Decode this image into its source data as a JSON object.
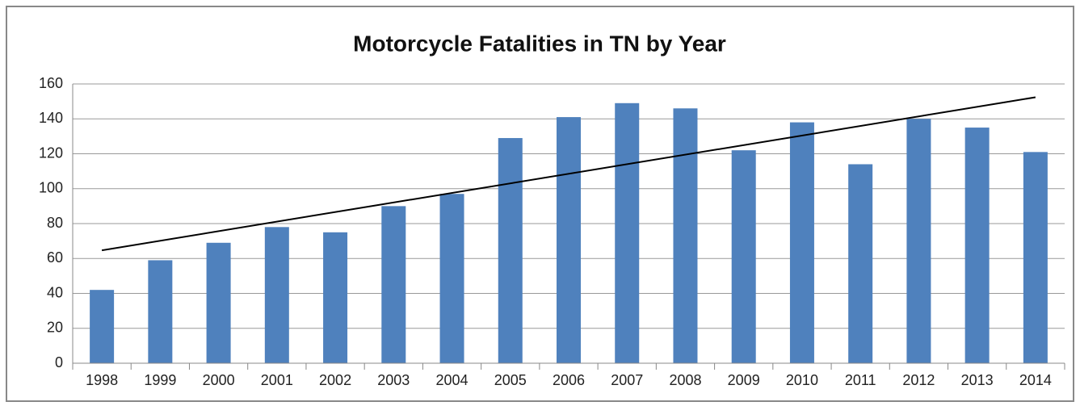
{
  "chart_data": {
    "type": "bar",
    "title": "Motorcycle Fatalities in TN by Year",
    "categories": [
      "1998",
      "1999",
      "2000",
      "2001",
      "2002",
      "2003",
      "2004",
      "2005",
      "2006",
      "2007",
      "2008",
      "2009",
      "2010",
      "2011",
      "2012",
      "2013",
      "2014"
    ],
    "values": [
      42,
      59,
      69,
      78,
      75,
      90,
      97,
      129,
      141,
      149,
      146,
      122,
      138,
      114,
      140,
      135,
      121
    ],
    "color": "#4f81bd",
    "ylim": [
      0,
      160
    ],
    "yticks": [
      0,
      20,
      40,
      60,
      80,
      100,
      120,
      140,
      160
    ],
    "grid": true,
    "trendline": "linear"
  }
}
